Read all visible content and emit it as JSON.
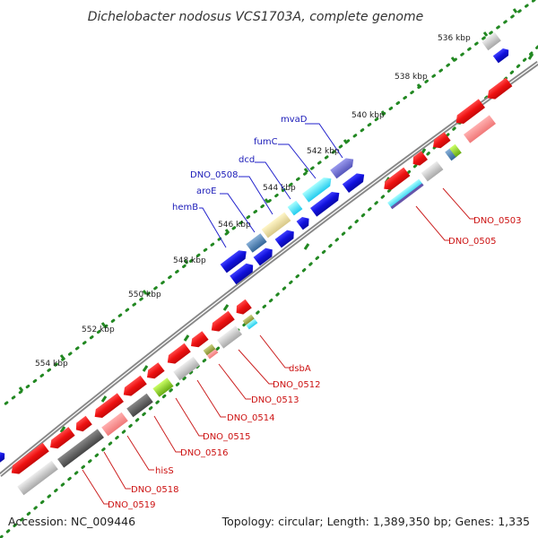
{
  "title": "Dichelobacter nodosus VCS1703A, complete genome",
  "ticks": [
    "536 kbp",
    "538 kbp",
    "540 kbp",
    "542 kbp",
    "544 kbp",
    "546 kbp",
    "548 kbp",
    "550 kbp",
    "552 kbp",
    "554 kbp"
  ],
  "upper_labels": [
    "mvaD",
    "fumC",
    "dcd",
    "DNO_0508",
    "aroE",
    "hemB"
  ],
  "right_labels": [
    "DNO_0503",
    "DNO_0505"
  ],
  "lower_labels": [
    "dsbA",
    "DNO_0512",
    "DNO_0513",
    "DNO_0514",
    "DNO_0515",
    "DNO_0516",
    "hisS",
    "DNO_0518",
    "DNO_0519"
  ],
  "footer": {
    "accession": "Accession: NC_009446",
    "summary": "Topology: circular; Length: 1,389,350 bp; Genes: 1,335"
  },
  "colors": {
    "forward_strand": "#1111dd",
    "reverse_strand": "#ee1111",
    "backbone": "#777777",
    "ticks": "#228822"
  }
}
